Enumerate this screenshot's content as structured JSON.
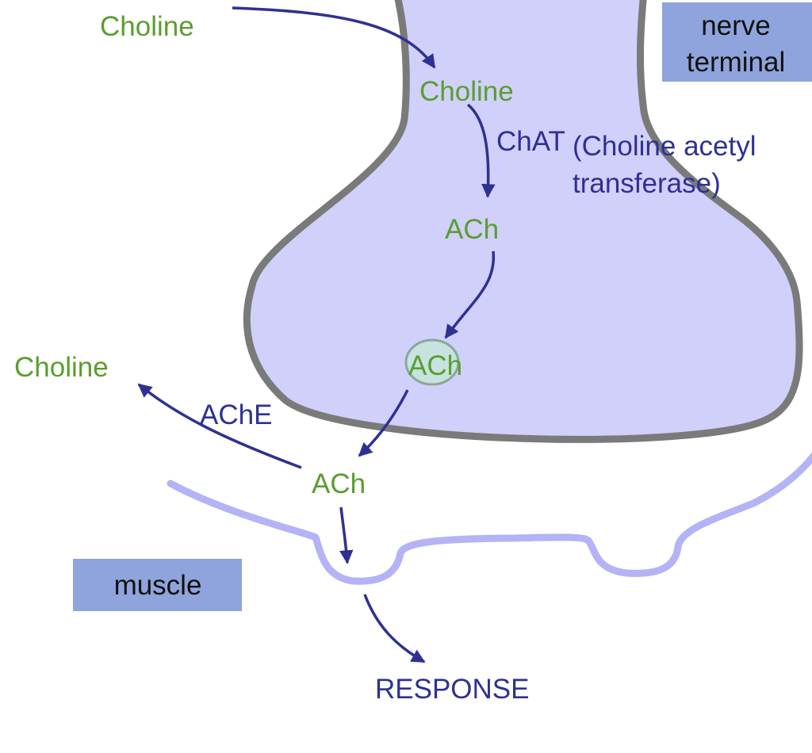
{
  "colors": {
    "terminal_fill": "#d0d0fa",
    "terminal_stroke": "#7a7a7a",
    "membrane": "#b3b3f5",
    "arrow": "#2e3192",
    "chemical_text": "#5a9e2f",
    "enzyme_text": "#2e3192",
    "label_box": "#8fa4dc",
    "vesicle_fill": "#c6e3e0",
    "vesicle_stroke": "#8aa89a"
  },
  "labels": {
    "nerve_terminal_line1": "nerve",
    "nerve_terminal_line2": "terminal",
    "muscle": "muscle"
  },
  "chemicals": {
    "choline_outside": "Choline",
    "choline_inside": "Choline",
    "ach_synth": "ACh",
    "ach_vesicle": "ACh",
    "ach_cleft": "ACh",
    "choline_hydrolysis": "Choline"
  },
  "enzymes": {
    "chat": "ChAT",
    "chat_full_line1": "(Choline acetyl",
    "chat_full_line2": "transferase)",
    "ache": "AChE"
  },
  "response": "RESPONSE"
}
